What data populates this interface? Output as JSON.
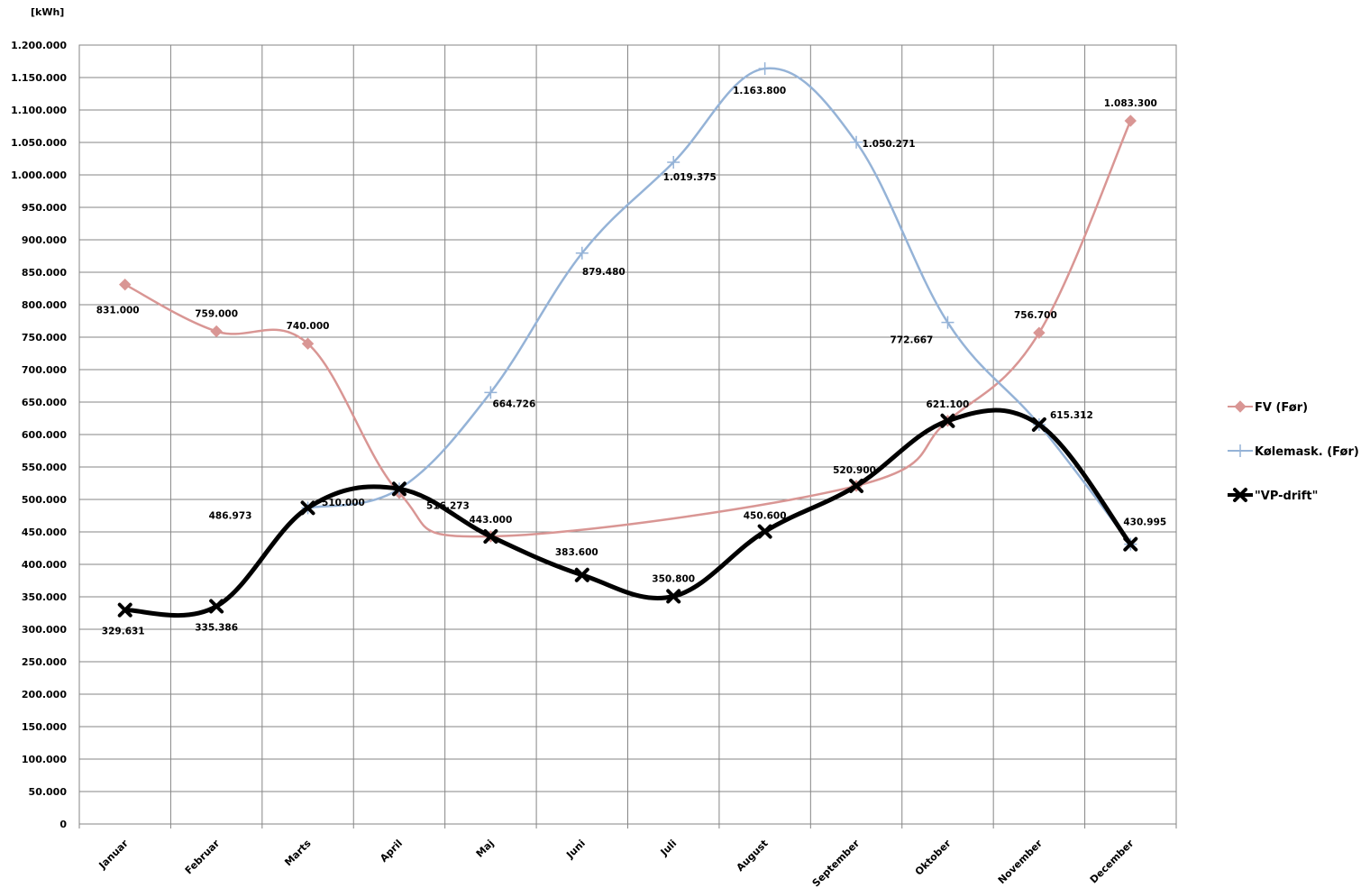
{
  "chart_data": {
    "type": "line",
    "unit_label": "[kWh]",
    "categories": [
      "Januar",
      "Februar",
      "Marts",
      "April",
      "Maj",
      "Juni",
      "Juli",
      "August",
      "September",
      "Oktober",
      "November",
      "December"
    ],
    "y_ticks": [
      "0",
      "50.000",
      "100.000",
      "150.000",
      "200.000",
      "250.000",
      "300.000",
      "350.000",
      "400.000",
      "450.000",
      "500.000",
      "550.000",
      "600.000",
      "650.000",
      "700.000",
      "750.000",
      "800.000",
      "850.000",
      "900.000",
      "950.000",
      "1.000.000",
      "1.050.000",
      "1.100.000",
      "1.150.000",
      "1.200.000"
    ],
    "ylim": [
      0,
      1200000
    ],
    "grid": true,
    "legend_position": "right",
    "series": [
      {
        "name": "FV (Før)",
        "color": "#d99694",
        "marker": "diamond",
        "points": [
          {
            "month": "Januar",
            "value": 831000,
            "label": "831.000"
          },
          {
            "month": "Februar",
            "value": 759000,
            "label": "759.000"
          },
          {
            "month": "Marts",
            "value": 740000,
            "label": "740.000"
          },
          {
            "month": "April",
            "value": 510000,
            "label": "510.000"
          },
          {
            "month": "Maj",
            "value": 443000,
            "label": "443.000"
          },
          {
            "month": "September",
            "value": 520900,
            "label": "520.900"
          },
          {
            "month": "Oktober",
            "value": 621100,
            "label": "621.100"
          },
          {
            "month": "November",
            "value": 756700,
            "label": "756.700"
          },
          {
            "month": "December",
            "value": 1083300,
            "label": "1.083.300"
          }
        ]
      },
      {
        "name": "Kølemask. (Før)",
        "color": "#95b3d7",
        "marker": "plus",
        "points": [
          {
            "month": "Marts",
            "value": 486973,
            "label": "486.973"
          },
          {
            "month": "April",
            "value": 516273,
            "label": "516.273"
          },
          {
            "month": "Maj",
            "value": 664726,
            "label": "664.726"
          },
          {
            "month": "Juni",
            "value": 879480,
            "label": "879.480"
          },
          {
            "month": "Juli",
            "value": 1019375,
            "label": "1.019.375"
          },
          {
            "month": "August",
            "value": 1163800,
            "label": "1.163.800"
          },
          {
            "month": "September",
            "value": 1050271,
            "label": "1.050.271"
          },
          {
            "month": "Oktober",
            "value": 772667,
            "label": "772.667"
          },
          {
            "month": "November",
            "value": 615312,
            "label": "615.312"
          },
          {
            "month": "December",
            "value": 430995,
            "label": "430.995"
          }
        ]
      },
      {
        "name": "\"VP-drift\"",
        "color": "#000000",
        "marker": "x",
        "points": [
          {
            "month": "Januar",
            "value": 329631,
            "label": "329.631"
          },
          {
            "month": "Februar",
            "value": 335386,
            "label": "335.386"
          },
          {
            "month": "Marts",
            "value": 486973,
            "label": ""
          },
          {
            "month": "April",
            "value": 516273,
            "label": ""
          },
          {
            "month": "Maj",
            "value": 443000,
            "label": ""
          },
          {
            "month": "Juni",
            "value": 383600,
            "label": "383.600"
          },
          {
            "month": "Juli",
            "value": 350800,
            "label": "350.800"
          },
          {
            "month": "August",
            "value": 450600,
            "label": "450.600"
          },
          {
            "month": "September",
            "value": 520900,
            "label": ""
          },
          {
            "month": "Oktober",
            "value": 621100,
            "label": ""
          },
          {
            "month": "November",
            "value": 615312,
            "label": ""
          },
          {
            "month": "December",
            "value": 430995,
            "label": ""
          }
        ]
      }
    ]
  }
}
